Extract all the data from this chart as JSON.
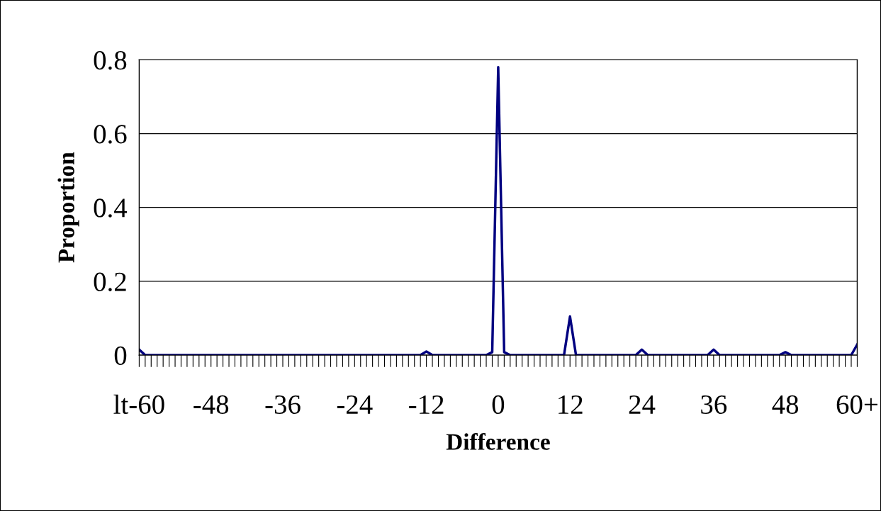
{
  "chart_data": {
    "type": "line",
    "xlabel": "Difference",
    "ylabel": "Proportion",
    "categories": [
      "lt-60",
      null,
      null,
      null,
      null,
      null,
      null,
      null,
      null,
      null,
      null,
      null,
      "-48",
      null,
      null,
      null,
      null,
      null,
      null,
      null,
      null,
      null,
      null,
      null,
      "-36",
      null,
      null,
      null,
      null,
      null,
      null,
      null,
      null,
      null,
      null,
      null,
      "-24",
      null,
      null,
      null,
      null,
      null,
      null,
      null,
      null,
      null,
      null,
      null,
      "-12",
      null,
      null,
      null,
      null,
      null,
      null,
      null,
      null,
      null,
      null,
      null,
      "0",
      null,
      null,
      null,
      null,
      null,
      null,
      null,
      null,
      null,
      null,
      null,
      "12",
      null,
      null,
      null,
      null,
      null,
      null,
      null,
      null,
      null,
      null,
      null,
      "24",
      null,
      null,
      null,
      null,
      null,
      null,
      null,
      null,
      null,
      null,
      null,
      "36",
      null,
      null,
      null,
      null,
      null,
      null,
      null,
      null,
      null,
      null,
      null,
      "48",
      null,
      null,
      null,
      null,
      null,
      null,
      null,
      null,
      null,
      null,
      null,
      "60+"
    ],
    "series": [
      {
        "color": "#000080",
        "values": [
          0.015,
          0,
          0,
          0,
          0,
          0,
          0,
          0,
          0,
          0,
          0,
          0,
          0,
          0,
          0,
          0,
          0,
          0,
          0,
          0,
          0,
          0,
          0,
          0,
          0,
          0,
          0,
          0,
          0,
          0,
          0,
          0,
          0,
          0,
          0,
          0,
          0,
          0,
          0,
          0,
          0,
          0,
          0,
          0,
          0,
          0,
          0,
          0,
          0.01,
          0,
          0,
          0,
          0,
          0,
          0,
          0,
          0,
          0,
          0,
          0.008,
          0.78,
          0.008,
          0,
          0,
          0,
          0,
          0,
          0,
          0,
          0,
          0,
          0,
          0.105,
          0,
          0,
          0,
          0,
          0,
          0,
          0,
          0,
          0,
          0,
          0,
          0.015,
          0,
          0,
          0,
          0,
          0,
          0,
          0,
          0,
          0,
          0,
          0,
          0.015,
          0,
          0,
          0,
          0,
          0,
          0,
          0,
          0,
          0,
          0,
          0,
          0.008,
          0,
          0,
          0,
          0,
          0,
          0,
          0,
          0,
          0,
          0,
          0,
          0.029
        ]
      }
    ],
    "ylim": [
      0,
      0.8
    ],
    "yticks": [
      0,
      0.2,
      0.4,
      0.6,
      0.8
    ],
    "grid": "y",
    "marker": "none",
    "line_style": "solid"
  }
}
